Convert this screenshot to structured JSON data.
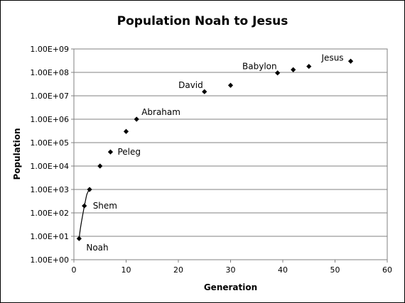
{
  "chart_data": {
    "type": "scatter",
    "title": "Population Noah to Jesus",
    "xlabel": "Generation",
    "ylabel": "Population",
    "xlim": [
      0,
      60
    ],
    "x_ticks": [
      "0",
      "10",
      "20",
      "30",
      "40",
      "50",
      "60"
    ],
    "ylim": [
      1,
      1000000000
    ],
    "y_scale": "log",
    "y_ticks": [
      "1.00E+00",
      "1.00E+01",
      "1.00E+02",
      "1.00E+03",
      "1.00E+04",
      "1.00E+05",
      "1.00E+06",
      "1.00E+07",
      "1.00E+08",
      "1.00E+09"
    ],
    "grid": "horizontal",
    "legend": "none",
    "marker": "diamond",
    "points": [
      {
        "x": 1,
        "y": 8,
        "label": "Noah"
      },
      {
        "x": 2,
        "y": 200,
        "label": "Shem"
      },
      {
        "x": 3,
        "y": 1000,
        "label": ""
      },
      {
        "x": 5,
        "y": 10000,
        "label": ""
      },
      {
        "x": 7,
        "y": 40000,
        "label": "Peleg"
      },
      {
        "x": 10,
        "y": 300000,
        "label": ""
      },
      {
        "x": 12,
        "y": 1000000,
        "label": "Abraham"
      },
      {
        "x": 25,
        "y": 15000000,
        "label": "David"
      },
      {
        "x": 30,
        "y": 28000000,
        "label": ""
      },
      {
        "x": 39,
        "y": 95000000,
        "label": "Babylon"
      },
      {
        "x": 42,
        "y": 130000000,
        "label": ""
      },
      {
        "x": 45,
        "y": 180000000,
        "label": ""
      },
      {
        "x": 53,
        "y": 300000000,
        "label": "Jesus"
      }
    ],
    "smoothed_segment": [
      0,
      1,
      2
    ]
  }
}
